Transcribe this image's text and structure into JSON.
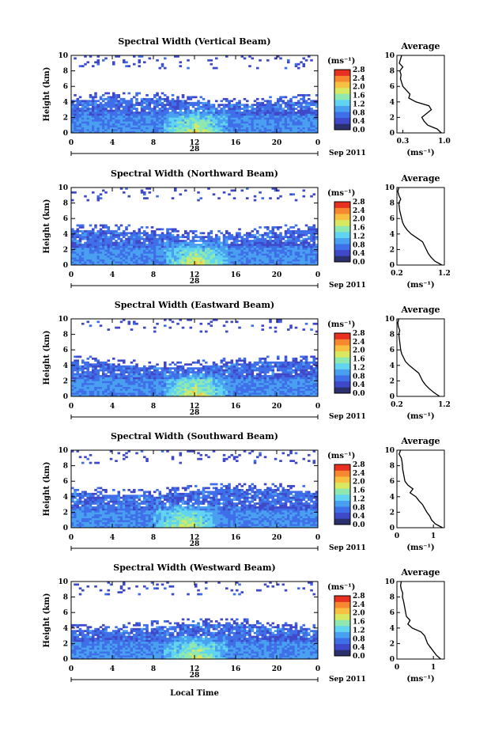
{
  "colors": {
    "scale": [
      "#2b2f6b",
      "#3f48c8",
      "#3f6fe8",
      "#4aa0f0",
      "#60d4f0",
      "#8fe8b0",
      "#d8e860",
      "#f8c040",
      "#f88830",
      "#e83020"
    ]
  },
  "colorbar": {
    "unit": "(ms⁻¹)",
    "ticks": [
      "2.8",
      "2.4",
      "2.0",
      "1.6",
      "1.2",
      "0.8",
      "0.4",
      "0.0"
    ]
  },
  "chart_data": [
    {
      "type": "heatmap",
      "title": "Spectral Width (Vertical Beam)",
      "ylabel": "Height (km)",
      "ylim": [
        0,
        10
      ],
      "yticks": [
        "10",
        "8",
        "6",
        "4",
        "2",
        "0"
      ],
      "xlim": [
        0,
        24
      ],
      "xticks": [
        "0",
        "4",
        "8",
        "12",
        "16",
        "20",
        "0"
      ],
      "date_label": "28",
      "date_right": "Sep 2011",
      "xlabel": "",
      "values_unit": "ms-1",
      "colorbar_range": [
        0.0,
        2.8
      ],
      "summary": {
        "low_layer_top_km": 4,
        "peak_width_time_h": 12,
        "peak_width_value": 1.6
      },
      "average_profile": {
        "title": "Average",
        "xlabel": "(ms⁻¹)",
        "xlim": [
          0.2,
          1.0
        ],
        "xticks": [
          "0.3",
          "1.0"
        ],
        "heights": [
          0,
          0.5,
          1,
          1.5,
          2,
          2.5,
          3,
          3.5,
          4,
          4.5,
          5,
          5.5,
          6,
          6.5,
          7,
          7.5,
          8,
          8.5,
          9,
          9.5,
          10
        ],
        "values": [
          0.95,
          0.88,
          0.72,
          0.66,
          0.62,
          0.7,
          0.78,
          0.74,
          0.52,
          0.4,
          0.42,
          0.36,
          0.3,
          0.28,
          0.26,
          0.27,
          0.25,
          0.3,
          0.24,
          0.26,
          0.28
        ]
      }
    },
    {
      "type": "heatmap",
      "title": "Spectral Width (Northward Beam)",
      "ylabel": "Height (km)",
      "ylim": [
        0,
        10
      ],
      "yticks": [
        "10",
        "8",
        "6",
        "4",
        "2",
        "0"
      ],
      "xlim": [
        0,
        24
      ],
      "xticks": [
        "0",
        "4",
        "8",
        "12",
        "16",
        "20",
        "0"
      ],
      "date_label": "28",
      "date_right": "Sep 2011",
      "xlabel": "",
      "values_unit": "ms-1",
      "colorbar_range": [
        0.0,
        2.8
      ],
      "summary": {
        "low_layer_top_km": 4,
        "peak_width_time_h": 12,
        "peak_width_value": 1.8
      },
      "average_profile": {
        "title": "Average",
        "xlabel": "(ms⁻¹)",
        "xlim": [
          0.2,
          1.2
        ],
        "xticks": [
          "0.2",
          "1.2"
        ],
        "heights": [
          0,
          0.5,
          1,
          1.5,
          2,
          2.5,
          3,
          3.5,
          4,
          4.5,
          5,
          5.5,
          6,
          6.5,
          7,
          7.5,
          8,
          8.5,
          9,
          9.5,
          10
        ],
        "values": [
          1.15,
          1.0,
          0.92,
          0.86,
          0.82,
          0.78,
          0.74,
          0.62,
          0.5,
          0.42,
          0.36,
          0.32,
          0.3,
          0.28,
          0.26,
          0.25,
          0.24,
          0.28,
          0.24,
          0.22,
          0.24
        ]
      }
    },
    {
      "type": "heatmap",
      "title": "Spectral Width (Eastward Beam)",
      "ylabel": "Height (km)",
      "ylim": [
        0,
        10
      ],
      "yticks": [
        "10",
        "8",
        "6",
        "4",
        "2",
        "0"
      ],
      "xlim": [
        0,
        24
      ],
      "xticks": [
        "0",
        "4",
        "8",
        "12",
        "16",
        "20",
        "0"
      ],
      "date_label": "28",
      "date_right": "Sep 2011",
      "xlabel": "",
      "values_unit": "ms-1",
      "colorbar_range": [
        0.0,
        2.8
      ],
      "summary": {
        "low_layer_top_km": 4,
        "peak_width_time_h": 12,
        "peak_width_value": 1.8
      },
      "average_profile": {
        "title": "Average",
        "xlabel": "(ms⁻¹)",
        "xlim": [
          0.2,
          1.2
        ],
        "xticks": [
          "0.2",
          "1.2"
        ],
        "heights": [
          0,
          0.5,
          1,
          1.5,
          2,
          2.5,
          3,
          3.5,
          4,
          4.5,
          5,
          5.5,
          6,
          6.5,
          7,
          7.5,
          8,
          8.5,
          9,
          9.5,
          10
        ],
        "values": [
          1.1,
          0.98,
          0.88,
          0.8,
          0.74,
          0.7,
          0.66,
          0.56,
          0.46,
          0.38,
          0.34,
          0.3,
          0.28,
          0.27,
          0.26,
          0.25,
          0.24,
          0.26,
          0.23,
          0.22,
          0.24
        ]
      }
    },
    {
      "type": "heatmap",
      "title": "Spectral Width (Southward Beam)",
      "ylabel": "Height (km)",
      "ylim": [
        0,
        10
      ],
      "yticks": [
        "10",
        "8",
        "6",
        "4",
        "2",
        "0"
      ],
      "xlim": [
        0,
        24
      ],
      "xticks": [
        "0",
        "4",
        "8",
        "12",
        "16",
        "20",
        "0"
      ],
      "date_label": "28",
      "date_right": "Sep 2011",
      "xlabel": "",
      "values_unit": "ms-1",
      "colorbar_range": [
        0.0,
        2.8
      ],
      "summary": {
        "low_layer_top_km": 4.5,
        "peak_width_time_h": 11,
        "peak_width_value": 1.6
      },
      "average_profile": {
        "title": "Average",
        "xlabel": "(ms⁻¹)",
        "xlim": [
          0.0,
          1.3
        ],
        "xticks": [
          "0",
          "1"
        ],
        "heights": [
          0,
          0.5,
          1,
          1.5,
          2,
          2.5,
          3,
          3.5,
          4,
          4.5,
          5,
          5.5,
          6,
          6.5,
          7,
          7.5,
          8,
          8.5,
          9,
          9.5,
          10
        ],
        "values": [
          1.25,
          1.05,
          0.95,
          0.9,
          0.82,
          0.76,
          0.7,
          0.6,
          0.52,
          0.36,
          0.44,
          0.3,
          0.22,
          0.2,
          0.18,
          0.16,
          0.15,
          0.14,
          0.12,
          0.06,
          0.1
        ]
      }
    },
    {
      "type": "heatmap",
      "title": "Spectral Width (Westward Beam)",
      "ylabel": "Height (km)",
      "ylim": [
        0,
        10
      ],
      "yticks": [
        "10",
        "8",
        "6",
        "4",
        "2",
        "0"
      ],
      "xlim": [
        0,
        24
      ],
      "xticks": [
        "0",
        "4",
        "8",
        "12",
        "16",
        "20",
        "0"
      ],
      "date_label": "28",
      "date_right": "Sep 2011",
      "xlabel": "Local Time",
      "values_unit": "ms-1",
      "colorbar_range": [
        0.0,
        2.8
      ],
      "summary": {
        "low_layer_top_km": 4,
        "peak_width_time_h": 12,
        "peak_width_value": 1.6
      },
      "average_profile": {
        "title": "Average",
        "xlabel": "(ms⁻¹)",
        "xlim": [
          0.0,
          1.3
        ],
        "xticks": [
          "0",
          "1"
        ],
        "heights": [
          0,
          0.5,
          1,
          1.5,
          2,
          2.5,
          3,
          3.5,
          4,
          4.5,
          5,
          5.5,
          6,
          6.5,
          7,
          7.5,
          8,
          8.5,
          9,
          9.5,
          10
        ],
        "values": [
          1.2,
          1.08,
          1.0,
          0.92,
          0.84,
          0.8,
          0.76,
          0.66,
          0.42,
          0.3,
          0.36,
          0.26,
          0.24,
          0.22,
          0.2,
          0.18,
          0.15,
          0.16,
          0.12,
          0.1,
          0.12
        ]
      }
    }
  ]
}
